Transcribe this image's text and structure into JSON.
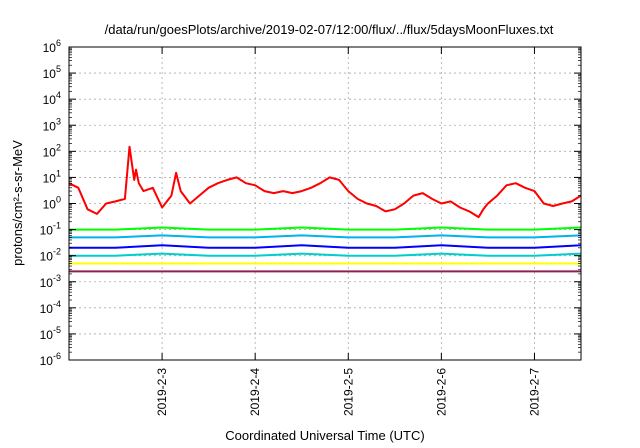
{
  "chart_data": {
    "type": "line",
    "title": "/data/run/goesPlots/archive/2019-02-07/12:00/flux/../flux/5daysMoonFluxes.txt",
    "xlabel": "Coordinated Universal Time (UTC)",
    "ylabel": "protons/cm²-s-sr-MeV",
    "y_scale": "log",
    "ylim_exponents": [
      -6,
      6
    ],
    "yticks": [
      {
        "base": "10",
        "exp": "6"
      },
      {
        "base": "10",
        "exp": "5"
      },
      {
        "base": "10",
        "exp": "4"
      },
      {
        "base": "10",
        "exp": "3"
      },
      {
        "base": "10",
        "exp": "2"
      },
      {
        "base": "10",
        "exp": "1"
      },
      {
        "base": "10",
        "exp": "0"
      },
      {
        "base": "10",
        "exp": "-1"
      },
      {
        "base": "10",
        "exp": "-2"
      },
      {
        "base": "10",
        "exp": "-3"
      },
      {
        "base": "10",
        "exp": "-4"
      },
      {
        "base": "10",
        "exp": "-5"
      },
      {
        "base": "10",
        "exp": "-6"
      }
    ],
    "xlim": [
      "2019-02-02T00:00",
      "2019-02-07T12:00"
    ],
    "xticks": [
      "2019-2-3",
      "2019-2-4",
      "2019-2-5",
      "2019-2-6",
      "2019-2-7"
    ],
    "grid": true,
    "series": [
      {
        "color": "#ff0000",
        "x": [
          2.0,
          2.1,
          2.2,
          2.3,
          2.4,
          2.5,
          2.6,
          2.65,
          2.7,
          2.72,
          2.75,
          2.8,
          2.9,
          3.0,
          3.1,
          3.15,
          3.2,
          3.3,
          3.4,
          3.5,
          3.6,
          3.7,
          3.8,
          3.9,
          4.0,
          4.1,
          4.2,
          4.3,
          4.4,
          4.5,
          4.6,
          4.7,
          4.8,
          4.9,
          5.0,
          5.1,
          5.2,
          5.3,
          5.4,
          5.5,
          5.6,
          5.7,
          5.8,
          5.9,
          6.0,
          6.1,
          6.2,
          6.3,
          6.4,
          6.45,
          6.5,
          6.6,
          6.7,
          6.8,
          6.9,
          7.0,
          7.1,
          7.2,
          7.3,
          7.4,
          7.5
        ],
        "y": [
          6,
          4,
          0.6,
          0.4,
          1,
          1.2,
          1.5,
          150,
          8,
          20,
          6,
          3,
          4,
          0.7,
          2,
          15,
          3,
          1,
          2,
          4,
          6,
          8,
          10,
          6,
          5,
          3,
          2.5,
          3,
          2.5,
          3,
          4,
          6,
          10,
          8,
          3,
          1.5,
          1,
          0.8,
          0.5,
          0.6,
          1,
          2,
          2.5,
          1.5,
          1,
          1.2,
          0.7,
          0.5,
          0.3,
          0.6,
          1,
          2,
          5,
          6,
          4,
          3,
          1,
          0.8,
          1,
          1.2,
          2
        ]
      },
      {
        "color": "#00ff00",
        "x": [
          2.0,
          2.5,
          3.0,
          3.5,
          4.0,
          4.5,
          5.0,
          5.5,
          6.0,
          6.5,
          7.0,
          7.5
        ],
        "y": [
          0.1,
          0.1,
          0.12,
          0.1,
          0.1,
          0.12,
          0.1,
          0.1,
          0.12,
          0.1,
          0.1,
          0.12
        ]
      },
      {
        "color": "#00b2ee",
        "x": [
          2.0,
          2.5,
          3.0,
          3.5,
          4.0,
          4.5,
          5.0,
          5.5,
          6.0,
          6.5,
          7.0,
          7.5
        ],
        "y": [
          0.05,
          0.05,
          0.06,
          0.05,
          0.05,
          0.06,
          0.05,
          0.05,
          0.06,
          0.05,
          0.05,
          0.06
        ]
      },
      {
        "color": "#0000ff",
        "x": [
          2.0,
          2.5,
          3.0,
          3.5,
          4.0,
          4.5,
          5.0,
          5.5,
          6.0,
          6.5,
          7.0,
          7.5
        ],
        "y": [
          0.02,
          0.02,
          0.025,
          0.02,
          0.02,
          0.025,
          0.02,
          0.02,
          0.025,
          0.02,
          0.02,
          0.025
        ]
      },
      {
        "color": "#00cdcd",
        "x": [
          2.0,
          2.5,
          3.0,
          3.5,
          4.0,
          4.5,
          5.0,
          5.5,
          6.0,
          6.5,
          7.0,
          7.5
        ],
        "y": [
          0.01,
          0.01,
          0.012,
          0.01,
          0.01,
          0.012,
          0.01,
          0.01,
          0.012,
          0.01,
          0.01,
          0.012
        ]
      },
      {
        "color": "#ffff00",
        "x": [
          2.0,
          2.5,
          3.0,
          3.5,
          4.0,
          4.5,
          5.0,
          5.5,
          6.0,
          6.5,
          7.0,
          7.5
        ],
        "y": [
          0.005,
          0.005,
          0.005,
          0.005,
          0.005,
          0.005,
          0.005,
          0.005,
          0.005,
          0.005,
          0.005,
          0.005
        ]
      },
      {
        "color": "#8b2252",
        "x": [
          2.0,
          2.5,
          3.0,
          3.5,
          4.0,
          4.5,
          5.0,
          5.5,
          6.0,
          6.5,
          7.0,
          7.5
        ],
        "y": [
          0.0025,
          0.0025,
          0.0025,
          0.0025,
          0.0025,
          0.0025,
          0.0025,
          0.0025,
          0.0025,
          0.0025,
          0.0025,
          0.0025
        ]
      }
    ]
  }
}
